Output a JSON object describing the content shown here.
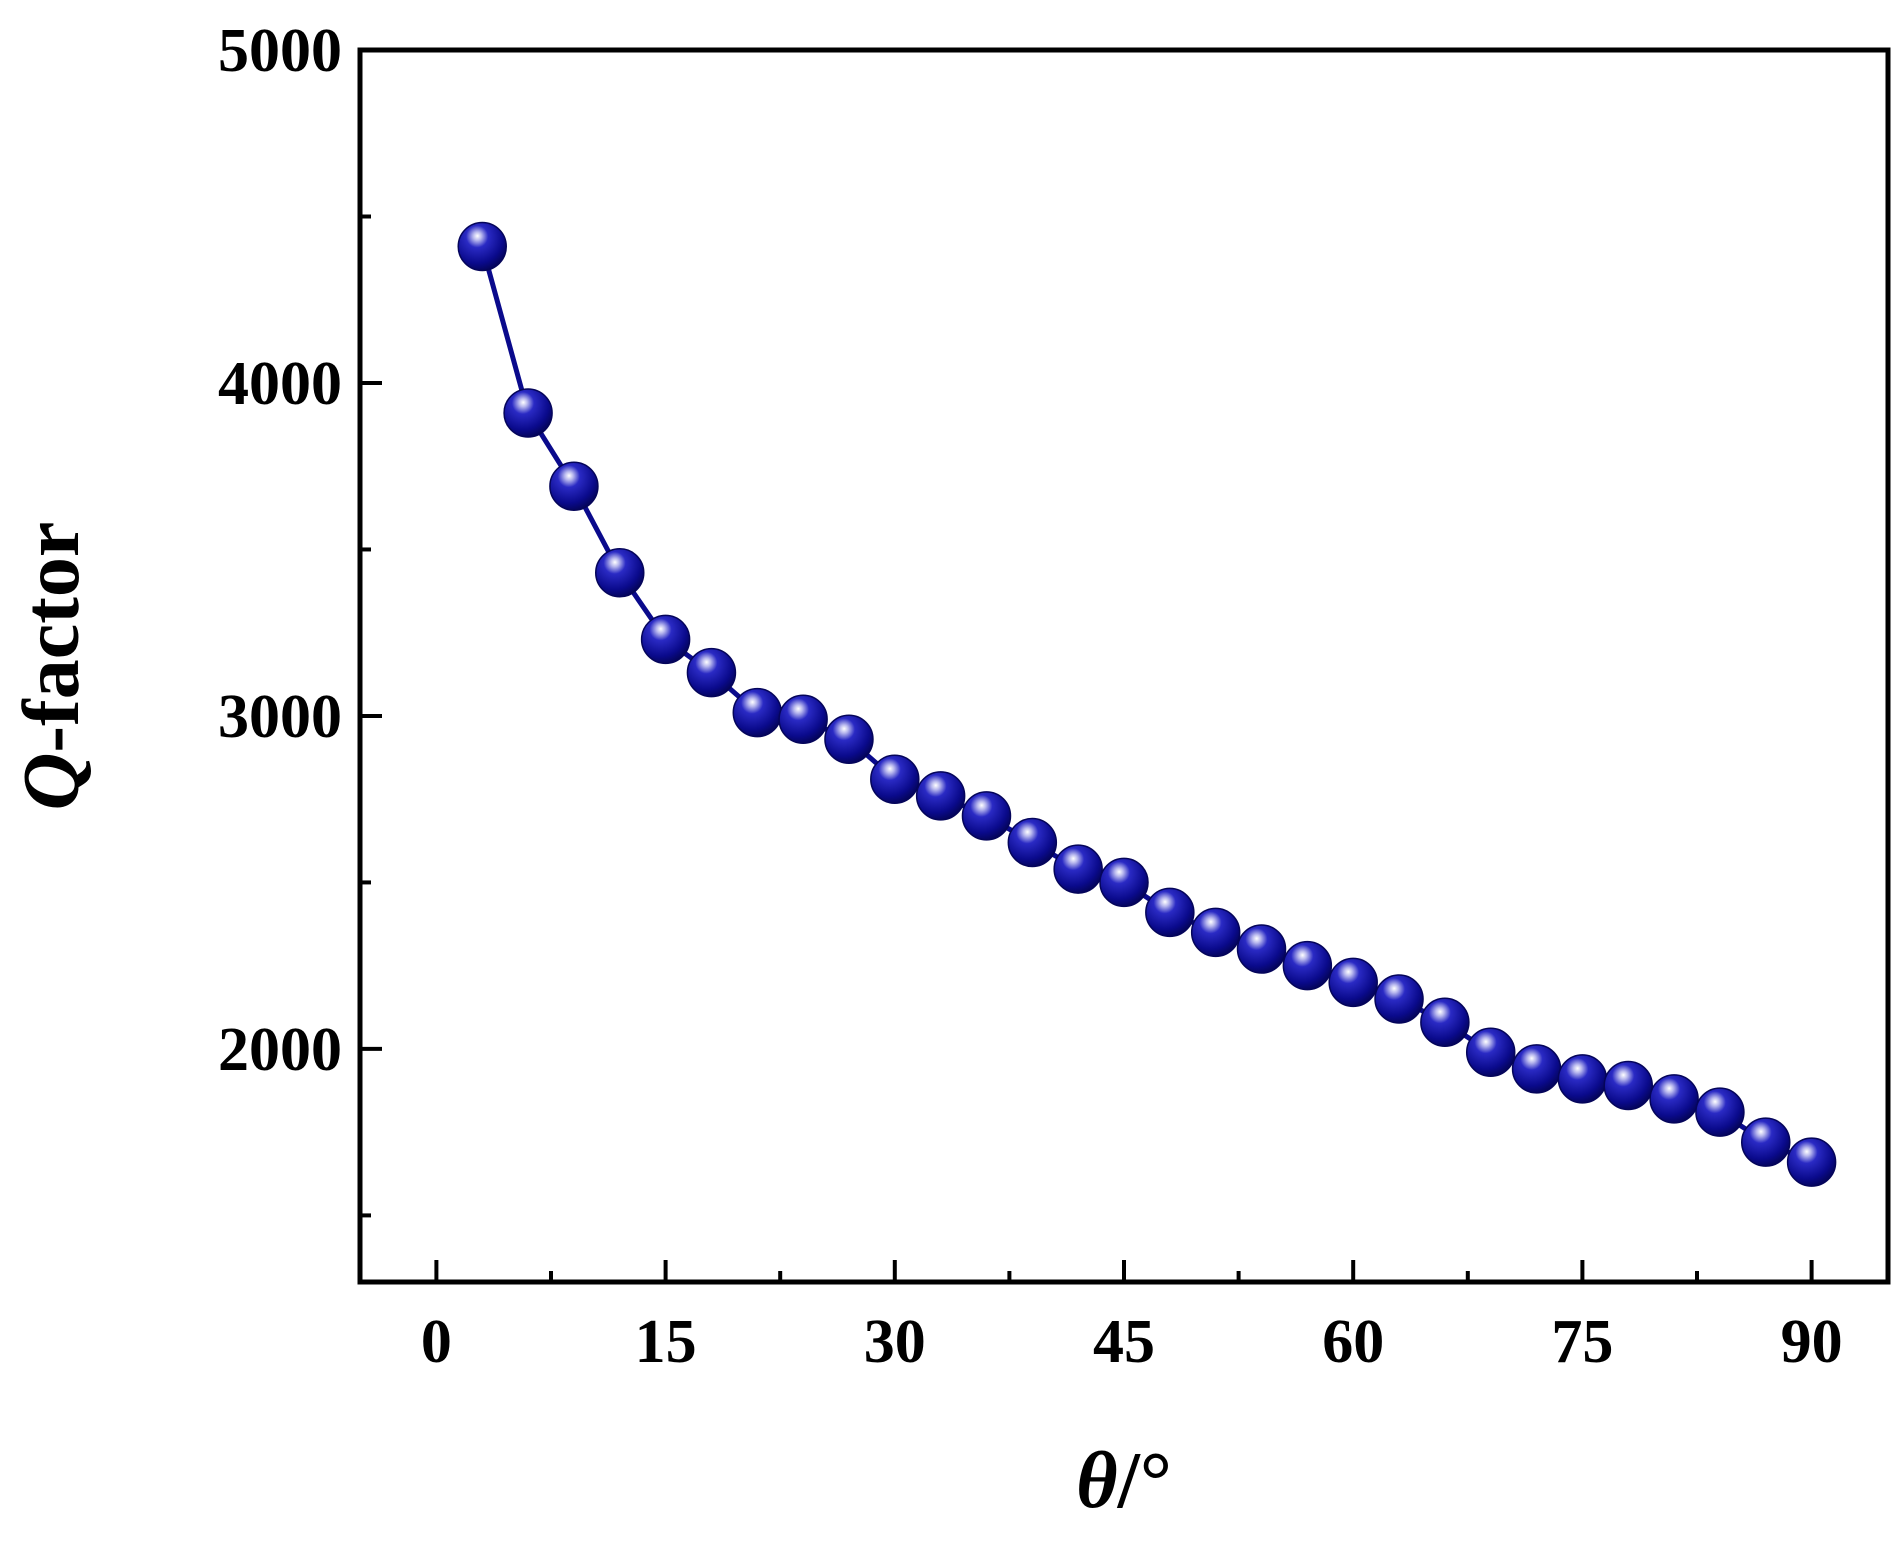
{
  "chart_data": {
    "type": "line",
    "xlabel_symbol": "θ",
    "xlabel_unit": "/°",
    "ylabel_symbol": "Q",
    "ylabel_rest": "-factor",
    "xlim": [
      -5,
      95
    ],
    "ylim": [
      1300,
      5000
    ],
    "xticks": [
      0,
      15,
      30,
      45,
      60,
      75,
      90
    ],
    "xtick_labels": [
      "0",
      "15",
      "30",
      "45",
      "60",
      "75",
      "90"
    ],
    "x_minor_ticks": [
      7.5,
      22.5,
      37.5,
      52.5,
      67.5,
      82.5
    ],
    "yticks": [
      2000,
      3000,
      4000,
      5000
    ],
    "ytick_labels": [
      "2000",
      "3000",
      "4000",
      "5000"
    ],
    "y_minor_ticks": [
      1500,
      2500,
      3500,
      4500
    ],
    "grid": false,
    "legend": "none",
    "series": [
      {
        "color": "#0a0a8c",
        "marker": "sphere",
        "x": [
          3,
          6,
          9,
          12,
          15,
          18,
          21,
          24,
          27,
          30,
          33,
          36,
          39,
          42,
          45,
          48,
          51,
          54,
          57,
          60,
          63,
          66,
          69,
          72,
          75,
          78,
          81,
          84,
          87,
          90
        ],
        "y": [
          4410,
          3910,
          3690,
          3430,
          3230,
          3130,
          3010,
          2990,
          2930,
          2810,
          2760,
          2700,
          2620,
          2540,
          2500,
          2410,
          2350,
          2300,
          2250,
          2200,
          2150,
          2080,
          1990,
          1940,
          1910,
          1890,
          1850,
          1810,
          1720,
          1660
        ]
      }
    ]
  }
}
